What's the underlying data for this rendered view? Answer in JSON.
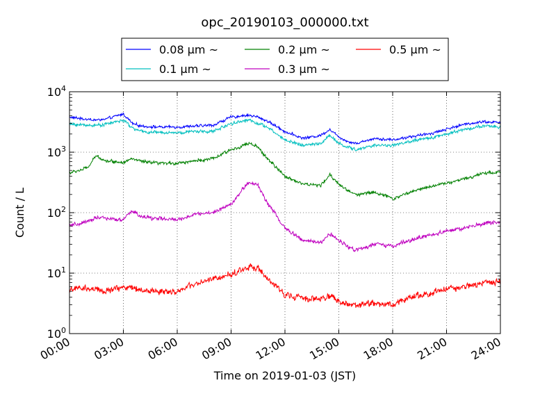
{
  "chart_data": {
    "type": "line",
    "title": "opc_20190103_000000.txt",
    "xlabel": "Time on 2019-01-03 (JST)",
    "ylabel": "Count / L",
    "yscale": "log",
    "ylim": [
      1,
      10000
    ],
    "xlim": [
      "00:00",
      "24:00"
    ],
    "x_ticks": [
      "00:00",
      "03:00",
      "06:00",
      "09:00",
      "12:00",
      "15:00",
      "18:00",
      "21:00",
      "24:00"
    ],
    "y_ticks": [
      {
        "base": "10",
        "exp": "0"
      },
      {
        "base": "10",
        "exp": "1"
      },
      {
        "base": "10",
        "exp": "2"
      },
      {
        "base": "10",
        "exp": "3"
      },
      {
        "base": "10",
        "exp": "4"
      }
    ],
    "grid": true,
    "legend_placement": "top-center (above plot)",
    "x_hours": [
      0,
      1,
      1.5,
      2,
      3,
      3.5,
      4,
      5,
      6,
      7,
      8,
      9,
      10,
      10.5,
      11,
      12,
      13,
      14,
      14.5,
      15,
      15.5,
      16,
      17,
      18,
      19,
      20,
      21,
      22,
      23,
      24
    ],
    "series": [
      {
        "name": "0.08 μm ~",
        "color": "#0000ff",
        "values": [
          3800,
          3500,
          3400,
          3500,
          4300,
          3000,
          2700,
          2600,
          2600,
          2700,
          2800,
          3800,
          4100,
          3800,
          3300,
          2200,
          1700,
          1900,
          2400,
          1800,
          1500,
          1400,
          1700,
          1600,
          1800,
          2000,
          2400,
          2900,
          3200,
          3100
        ]
      },
      {
        "name": "0.1 μm ~",
        "color": "#00bfbf",
        "values": [
          2900,
          2800,
          2800,
          2900,
          3400,
          2500,
          2200,
          2100,
          2100,
          2200,
          2200,
          3000,
          3400,
          3000,
          2600,
          1600,
          1300,
          1400,
          1900,
          1400,
          1200,
          1100,
          1300,
          1300,
          1500,
          1700,
          2000,
          2400,
          2700,
          2600
        ]
      },
      {
        "name": "0.2 μm ~",
        "color": "#008000",
        "values": [
          450,
          550,
          880,
          720,
          680,
          780,
          700,
          650,
          660,
          720,
          780,
          1100,
          1400,
          1200,
          800,
          400,
          300,
          280,
          420,
          300,
          230,
          200,
          220,
          170,
          220,
          270,
          310,
          360,
          450,
          470
        ]
      },
      {
        "name": "0.3 μm ~",
        "color": "#bf00bf",
        "values": [
          60,
          70,
          85,
          80,
          75,
          110,
          85,
          80,
          75,
          95,
          100,
          140,
          320,
          280,
          150,
          55,
          35,
          32,
          45,
          35,
          28,
          24,
          30,
          28,
          35,
          42,
          50,
          55,
          65,
          70
        ]
      },
      {
        "name": "0.5 μm ~",
        "color": "#ff0000",
        "values": [
          5.5,
          5.5,
          5.2,
          5.0,
          6.0,
          5.8,
          5.2,
          5.0,
          5.0,
          6.5,
          8.0,
          9.5,
          13,
          12,
          8,
          4.5,
          3.8,
          3.7,
          4.3,
          3.4,
          3.0,
          3.0,
          3.2,
          3.0,
          4.0,
          4.5,
          5.5,
          6.0,
          6.8,
          7.5
        ]
      }
    ]
  }
}
